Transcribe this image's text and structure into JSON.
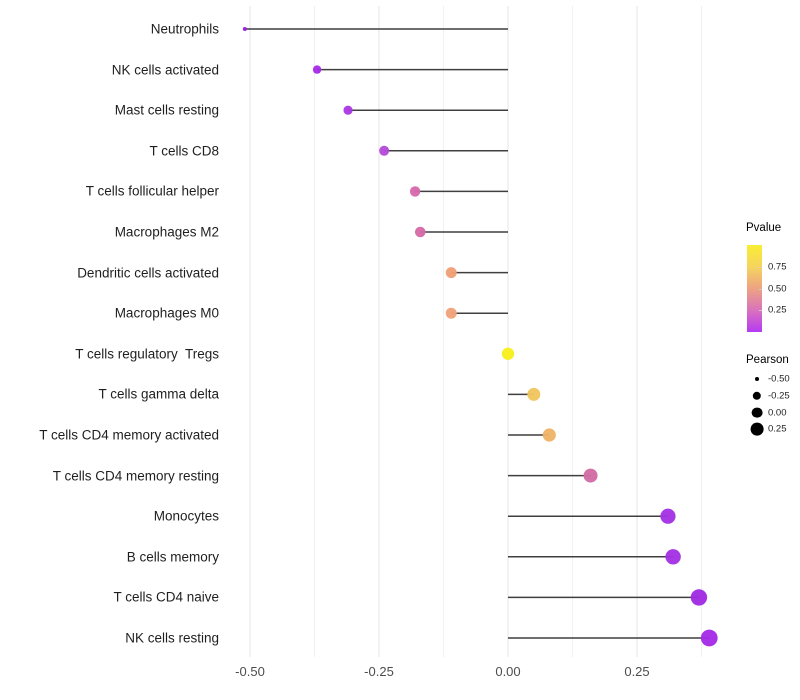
{
  "chart_data": {
    "type": "lollipop",
    "orientation": "horizontal",
    "title": "",
    "xlabel": "",
    "ylabel": "",
    "xlim": [
      -0.525,
      0.405
    ],
    "baseline": 0.0,
    "grid": true,
    "x_major_ticks": [
      -0.5,
      -0.25,
      0.0,
      0.25
    ],
    "x_tick_labels": [
      "-0.50",
      "-0.25",
      "0.00",
      "0.25"
    ],
    "x_minor_ticks": [
      -0.375,
      -0.125,
      0.125,
      0.375
    ],
    "size_encoding": "Pearson",
    "color_encoding": "Pvalue",
    "points": [
      {
        "category": "Neutrophils",
        "pearson": -0.51,
        "pvalue": 0.04,
        "color": "#9a1fe8",
        "radius": 2.0
      },
      {
        "category": "NK cells activated",
        "pearson": -0.37,
        "pvalue": 0.06,
        "color": "#a52be8",
        "radius": 4.2
      },
      {
        "category": "Mast cells resting",
        "pearson": -0.31,
        "pvalue": 0.1,
        "color": "#ab38e3",
        "radius": 4.6
      },
      {
        "category": "T cells CD8",
        "pearson": -0.24,
        "pvalue": 0.16,
        "color": "#b44cd9",
        "radius": 5.0
      },
      {
        "category": "T cells follicular helper",
        "pearson": -0.18,
        "pvalue": 0.4,
        "color": "#d669ab",
        "radius": 5.2
      },
      {
        "category": "Macrophages M2",
        "pearson": -0.17,
        "pvalue": 0.42,
        "color": "#d56ba5",
        "radius": 5.3
      },
      {
        "category": "Dendritic cells activated",
        "pearson": -0.11,
        "pvalue": 0.58,
        "color": "#f0a077",
        "radius": 5.5
      },
      {
        "category": "Macrophages M0",
        "pearson": -0.11,
        "pvalue": 0.58,
        "color": "#efa279",
        "radius": 5.5
      },
      {
        "category": "T cells regulatory  Tregs",
        "pearson": 0.0,
        "pvalue": 0.97,
        "color": "#f7ef1e",
        "radius": 6.2
      },
      {
        "category": "T cells gamma delta",
        "pearson": 0.05,
        "pvalue": 0.78,
        "color": "#f0c75e",
        "radius": 6.5
      },
      {
        "category": "T cells CD4 memory activated",
        "pearson": 0.08,
        "pvalue": 0.68,
        "color": "#efb368",
        "radius": 6.6
      },
      {
        "category": "T cells CD4 memory resting",
        "pearson": 0.16,
        "pvalue": 0.38,
        "color": "#d06ca2",
        "radius": 7.0
      },
      {
        "category": "Monocytes",
        "pearson": 0.31,
        "pvalue": 0.07,
        "color": "#a432e4",
        "radius": 7.6
      },
      {
        "category": "B cells memory",
        "pearson": 0.32,
        "pvalue": 0.07,
        "color": "#a432e4",
        "radius": 7.7
      },
      {
        "category": "T cells CD4 naive",
        "pearson": 0.37,
        "pvalue": 0.05,
        "color": "#a02be3",
        "radius": 8.2
      },
      {
        "category": "NK cells resting",
        "pearson": 0.39,
        "pvalue": 0.05,
        "color": "#a62be8",
        "radius": 8.4
      }
    ]
  },
  "legend": {
    "pvalue": {
      "title": "Pvalue",
      "tick_labels": [
        "0.75",
        "0.50",
        "0.25"
      ],
      "tick_values": [
        0.75,
        0.5,
        0.25
      ],
      "range": [
        0.0,
        1.0
      ],
      "gradient_top_to_bottom": [
        "#f9ee33",
        "#f6d45f",
        "#eda382",
        "#d972bd",
        "#b53af3"
      ]
    },
    "pearson": {
      "title": "Pearson",
      "sizes": [
        {
          "label": "-0.50",
          "r": 2.0
        },
        {
          "label": "-0.25",
          "r": 4.2
        },
        {
          "label": "0.00",
          "r": 5.4
        },
        {
          "label": "0.25",
          "r": 6.4
        }
      ]
    }
  },
  "style": {
    "stem_color": "#3f3f3f",
    "grid_major_color": "#e4e4e4",
    "grid_minor_color": "#f1f1f1",
    "axis_text_color": "#4d4d4d",
    "background": "#ffffff"
  }
}
